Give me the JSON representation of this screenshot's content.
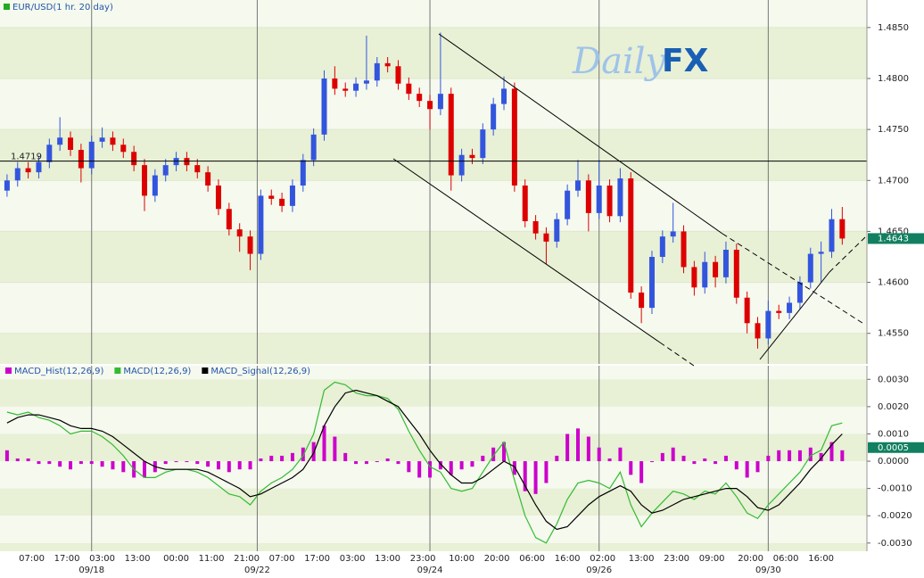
{
  "logo": {
    "script": "Daily",
    "bold": "FX"
  },
  "chart_data": [
    {
      "type": "candlestick",
      "title": "EUR/USD(1 hr. 20 day)",
      "x": [
        2,
        5,
        8,
        11,
        14,
        17,
        20,
        23,
        26,
        29,
        32,
        35,
        38,
        41,
        44,
        47,
        50,
        53,
        56,
        59,
        62,
        65,
        68,
        71,
        74,
        77,
        80,
        83,
        86,
        89,
        92,
        95,
        98,
        101,
        104,
        107,
        110,
        113,
        116,
        119,
        122,
        125,
        128,
        131,
        134,
        137,
        140,
        143,
        146,
        149,
        152,
        155,
        158,
        161,
        164,
        167,
        170,
        173,
        176,
        179,
        182,
        185,
        188,
        191,
        194,
        197,
        200,
        203,
        206,
        209,
        212,
        215,
        218,
        221,
        224,
        227,
        230,
        233,
        236,
        239
      ],
      "open": [
        1.469,
        1.47,
        1.4712,
        1.4708,
        1.4718,
        1.4735,
        1.4742,
        1.473,
        1.4712,
        1.4738,
        1.4742,
        1.4735,
        1.4728,
        1.4715,
        1.4685,
        1.4705,
        1.4715,
        1.4722,
        1.4715,
        1.4708,
        1.4695,
        1.4672,
        1.4652,
        1.4645,
        1.4628,
        1.4685,
        1.4682,
        1.4675,
        1.4695,
        1.472,
        1.4745,
        1.48,
        1.479,
        1.4788,
        1.4795,
        1.4798,
        1.4815,
        1.4812,
        1.4795,
        1.4785,
        1.4778,
        1.477,
        1.4785,
        1.4705,
        1.4725,
        1.4722,
        1.475,
        1.4775,
        1.479,
        1.4695,
        1.466,
        1.4648,
        1.464,
        1.4662,
        1.469,
        1.47,
        1.4668,
        1.4695,
        1.4665,
        1.4702,
        1.459,
        1.4575,
        1.4625,
        1.4645,
        1.465,
        1.4615,
        1.4595,
        1.462,
        1.4605,
        1.4632,
        1.4585,
        1.456,
        1.4545,
        1.4572,
        1.457,
        1.458,
        1.46,
        1.4628,
        1.463,
        1.4662
      ],
      "high": [
        1.4706,
        1.4718,
        1.4718,
        1.4724,
        1.4741,
        1.4762,
        1.4748,
        1.4736,
        1.4744,
        1.4752,
        1.4748,
        1.4741,
        1.4734,
        1.4721,
        1.4711,
        1.4721,
        1.4728,
        1.4728,
        1.4721,
        1.4714,
        1.4701,
        1.4678,
        1.4658,
        1.4651,
        1.4691,
        1.4691,
        1.4688,
        1.4701,
        1.4726,
        1.4751,
        1.4808,
        1.4812,
        1.4796,
        1.4801,
        1.4842,
        1.4821,
        1.4821,
        1.4818,
        1.4801,
        1.4791,
        1.4784,
        1.4845,
        1.4791,
        1.4731,
        1.4731,
        1.4756,
        1.4781,
        1.4802,
        1.4796,
        1.4701,
        1.4666,
        1.4654,
        1.4668,
        1.4696,
        1.472,
        1.4706,
        1.472,
        1.4701,
        1.4712,
        1.4708,
        1.4596,
        1.4631,
        1.4651,
        1.4678,
        1.4656,
        1.4621,
        1.463,
        1.4626,
        1.464,
        1.4638,
        1.4591,
        1.4566,
        1.4582,
        1.4578,
        1.4586,
        1.4606,
        1.4634,
        1.464,
        1.4672,
        1.4674
      ],
      "low": [
        1.4684,
        1.4694,
        1.4702,
        1.4702,
        1.4712,
        1.4729,
        1.4724,
        1.4698,
        1.4706,
        1.4732,
        1.4729,
        1.4722,
        1.4709,
        1.467,
        1.4679,
        1.4699,
        1.4709,
        1.4709,
        1.4702,
        1.4689,
        1.4666,
        1.4646,
        1.463,
        1.4612,
        1.4622,
        1.4676,
        1.4669,
        1.4669,
        1.4689,
        1.4714,
        1.4739,
        1.4784,
        1.4782,
        1.4782,
        1.4789,
        1.4792,
        1.4806,
        1.4789,
        1.4779,
        1.4772,
        1.475,
        1.4764,
        1.469,
        1.4699,
        1.4716,
        1.4716,
        1.4744,
        1.4769,
        1.4689,
        1.4654,
        1.4642,
        1.4618,
        1.4634,
        1.4656,
        1.4684,
        1.465,
        1.4662,
        1.4659,
        1.4659,
        1.4584,
        1.456,
        1.4569,
        1.4619,
        1.4639,
        1.4609,
        1.4587,
        1.4589,
        1.4595,
        1.4599,
        1.4579,
        1.455,
        1.4535,
        1.4539,
        1.4564,
        1.4564,
        1.4574,
        1.4594,
        1.46,
        1.4624,
        1.4637
      ],
      "close": [
        1.47,
        1.4712,
        1.4708,
        1.4718,
        1.4735,
        1.4742,
        1.473,
        1.4712,
        1.4738,
        1.4742,
        1.4735,
        1.4728,
        1.4715,
        1.4685,
        1.4705,
        1.4715,
        1.4722,
        1.4715,
        1.4708,
        1.4695,
        1.4672,
        1.4652,
        1.4645,
        1.4628,
        1.4685,
        1.4682,
        1.4675,
        1.4695,
        1.472,
        1.4745,
        1.48,
        1.479,
        1.4788,
        1.4795,
        1.4798,
        1.4815,
        1.4812,
        1.4795,
        1.4785,
        1.4778,
        1.477,
        1.4785,
        1.4705,
        1.4725,
        1.4722,
        1.475,
        1.4775,
        1.479,
        1.4695,
        1.466,
        1.4648,
        1.464,
        1.4662,
        1.469,
        1.47,
        1.4668,
        1.4695,
        1.4665,
        1.4702,
        1.459,
        1.4575,
        1.4625,
        1.4645,
        1.465,
        1.4615,
        1.4595,
        1.462,
        1.4605,
        1.4632,
        1.4585,
        1.456,
        1.4545,
        1.4572,
        1.457,
        1.458,
        1.46,
        1.4628,
        1.463,
        1.4662,
        1.4643
      ],
      "up_color": "#3355dd",
      "down_color": "#dd0000",
      "xlim": [
        0,
        246
      ],
      "ylim": [
        1.452,
        1.4877
      ],
      "yticks": [
        {
          "value": 1.485,
          "label": "1.4850"
        },
        {
          "value": 1.48,
          "label": "1.4800"
        },
        {
          "value": 1.475,
          "label": "1.4750"
        },
        {
          "value": 1.47,
          "label": "1.4700"
        },
        {
          "value": 1.465,
          "label": "1.4650"
        },
        {
          "value": 1.46,
          "label": "1.4600"
        },
        {
          "value": 1.455,
          "label": "1.4550"
        }
      ],
      "hline": {
        "value": 1.4719,
        "label": "1.4719"
      },
      "last_value": {
        "value": 1.4643,
        "label": "1.4643"
      },
      "grid": true
    },
    {
      "type": "macd",
      "x": [
        2,
        5,
        8,
        11,
        14,
        17,
        20,
        23,
        26,
        29,
        32,
        35,
        38,
        41,
        44,
        47,
        50,
        53,
        56,
        59,
        62,
        65,
        68,
        71,
        74,
        77,
        80,
        83,
        86,
        89,
        92,
        95,
        98,
        101,
        104,
        107,
        110,
        113,
        116,
        119,
        122,
        125,
        128,
        131,
        134,
        137,
        140,
        143,
        146,
        149,
        152,
        155,
        158,
        161,
        164,
        167,
        170,
        173,
        176,
        179,
        182,
        185,
        188,
        191,
        194,
        197,
        200,
        203,
        206,
        209,
        212,
        215,
        218,
        221,
        224,
        227,
        230,
        233,
        236,
        239
      ],
      "series": [
        {
          "name": "MACD_Hist(12,26,9)",
          "color": "#cc00cc",
          "type": "bar",
          "values": [
            0.0004,
            0.0001,
            0.0001,
            -0.0001,
            -0.0001,
            -0.0002,
            -0.0003,
            -0.0001,
            -0.0001,
            -0.0002,
            -0.0003,
            -0.0004,
            -0.0006,
            -0.0006,
            -0.0004,
            -0.0001,
            0,
            0,
            -0.0001,
            -0.0002,
            -0.0003,
            -0.0004,
            -0.0003,
            -0.0003,
            0.0001,
            0.0002,
            0.0002,
            0.0003,
            0.0005,
            0.0007,
            0.0013,
            0.0009,
            0.0003,
            -0.0001,
            -0.0001,
            0,
            0.0001,
            -0.0001,
            -0.0004,
            -0.0006,
            -0.0006,
            -0.0003,
            -0.0005,
            -0.0003,
            -0.0002,
            0.0002,
            0.0005,
            0.0007,
            -0.0005,
            -0.0011,
            -0.0012,
            -0.0008,
            0.0002,
            0.001,
            0.0012,
            0.0009,
            0.0005,
            0.0001,
            0.0005,
            -0.0005,
            -0.0008,
            0,
            0.0003,
            0.0005,
            0.0002,
            -0.0001,
            0.0001,
            -0.0001,
            0.0002,
            -0.0003,
            -0.0006,
            -0.0004,
            0.0002,
            0.0004,
            0.0004,
            0.0004,
            0.0005,
            0.0003,
            0.0007,
            0.0004
          ]
        },
        {
          "name": "MACD(12,26,9)",
          "color": "#33bb33",
          "type": "line",
          "values": [
            0.0018,
            0.0017,
            0.0018,
            0.0016,
            0.0015,
            0.0013,
            0.001,
            0.0011,
            0.0011,
            0.0009,
            0.0006,
            0.0002,
            -0.0003,
            -0.0006,
            -0.0006,
            -0.0004,
            -0.0003,
            -0.0003,
            -0.0004,
            -0.0006,
            -0.0009,
            -0.0012,
            -0.0013,
            -0.0016,
            -0.0011,
            -0.0008,
            -0.0006,
            -0.0003,
            0.0002,
            0.001,
            0.0026,
            0.0029,
            0.0028,
            0.0025,
            0.0024,
            0.0024,
            0.0023,
            0.0019,
            0.0011,
            0.0004,
            -0.0002,
            -0.0004,
            -0.001,
            -0.0011,
            -0.001,
            -0.0004,
            0.0002,
            0.0007,
            -0.0007,
            -0.002,
            -0.0028,
            -0.003,
            -0.0023,
            -0.0014,
            -0.0008,
            -0.0007,
            -0.0008,
            -0.001,
            -0.0004,
            -0.0016,
            -0.0024,
            -0.0019,
            -0.0015,
            -0.0011,
            -0.0012,
            -0.0014,
            -0.0011,
            -0.0012,
            -0.0008,
            -0.0013,
            -0.0019,
            -0.0021,
            -0.0016,
            -0.0012,
            -0.0008,
            -0.0004,
            0.0002,
            0.0004,
            0.0013,
            0.0014
          ]
        },
        {
          "name": "MACD_Signal(12,26,9)",
          "color": "#000000",
          "type": "line",
          "values": [
            0.0014,
            0.0016,
            0.0017,
            0.0017,
            0.0016,
            0.0015,
            0.0013,
            0.0012,
            0.0012,
            0.0011,
            0.0009,
            0.0006,
            0.0003,
            0,
            -0.0002,
            -0.0003,
            -0.0003,
            -0.0003,
            -0.0003,
            -0.0004,
            -0.0006,
            -0.0008,
            -0.001,
            -0.0013,
            -0.0012,
            -0.001,
            -0.0008,
            -0.0006,
            -0.0003,
            0.0003,
            0.0013,
            0.002,
            0.0025,
            0.0026,
            0.0025,
            0.0024,
            0.0022,
            0.002,
            0.0015,
            0.001,
            0.0004,
            -0.0001,
            -0.0005,
            -0.0008,
            -0.0008,
            -0.0006,
            -0.0003,
            0,
            -0.0002,
            -0.0009,
            -0.0016,
            -0.0022,
            -0.0025,
            -0.0024,
            -0.002,
            -0.0016,
            -0.0013,
            -0.0011,
            -0.0009,
            -0.0011,
            -0.0016,
            -0.0019,
            -0.0018,
            -0.0016,
            -0.0014,
            -0.0013,
            -0.0012,
            -0.0011,
            -0.001,
            -0.001,
            -0.0013,
            -0.0017,
            -0.0018,
            -0.0016,
            -0.0012,
            -0.0008,
            -0.0003,
            0.0001,
            0.0006,
            0.001
          ]
        }
      ],
      "xlim": [
        0,
        246
      ],
      "ylim": [
        -0.0033,
        0.0035
      ],
      "yticks": [
        {
          "value": 0.003,
          "label": "0.0030"
        },
        {
          "value": 0.002,
          "label": "0.0020"
        },
        {
          "value": 0.001,
          "label": "0.0010"
        },
        {
          "value": 0,
          "label": "0.0000"
        },
        {
          "value": -0.001,
          "label": "-0.0010"
        },
        {
          "value": -0.002,
          "label": "-0.0020"
        },
        {
          "value": -0.003,
          "label": "-0.0030"
        }
      ],
      "xticks": [
        {
          "value": 9,
          "label": "07:00"
        },
        {
          "value": 19,
          "label": "17:00"
        },
        {
          "value": 29,
          "label": "03:00"
        },
        {
          "value": 39,
          "label": "13:00"
        },
        {
          "value": 50,
          "label": "00:00"
        },
        {
          "value": 60,
          "label": "11:00"
        },
        {
          "value": 70,
          "label": "21:00"
        },
        {
          "value": 80,
          "label": "07:00"
        },
        {
          "value": 90,
          "label": "17:00"
        },
        {
          "value": 100,
          "label": "03:00"
        },
        {
          "value": 110,
          "label": "13:00"
        },
        {
          "value": 120,
          "label": "23:00"
        },
        {
          "value": 131,
          "label": "10:00"
        },
        {
          "value": 141,
          "label": "20:00"
        },
        {
          "value": 151,
          "label": "06:00"
        },
        {
          "value": 161,
          "label": "16:00"
        },
        {
          "value": 171,
          "label": "02:00"
        },
        {
          "value": 182,
          "label": "13:00"
        },
        {
          "value": 192,
          "label": "23:00"
        },
        {
          "value": 202,
          "label": "09:00"
        },
        {
          "value": 213,
          "label": "20:00"
        },
        {
          "value": 223,
          "label": "06:00"
        },
        {
          "value": 233,
          "label": "16:00"
        }
      ],
      "date_ticks": [
        {
          "value": 26,
          "label": "09/18"
        },
        {
          "value": 73,
          "label": "09/22"
        },
        {
          "value": 122,
          "label": "09/24"
        },
        {
          "value": 170,
          "label": "09/26"
        },
        {
          "value": 218,
          "label": "09/30"
        }
      ],
      "last_value": {
        "value": 0.0005,
        "label": "0.0005"
      }
    }
  ]
}
